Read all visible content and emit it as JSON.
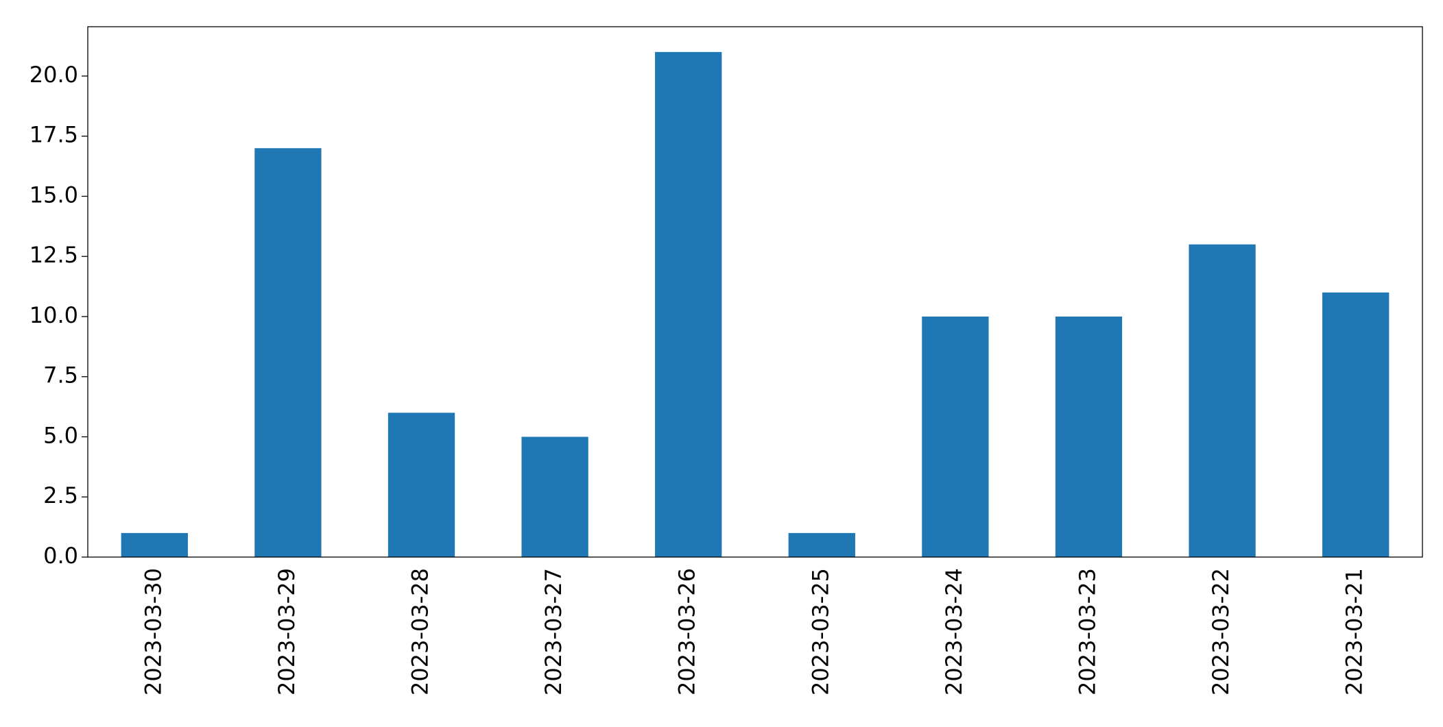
{
  "chart_data": {
    "type": "bar",
    "categories": [
      "2023-03-30",
      "2023-03-29",
      "2023-03-28",
      "2023-03-27",
      "2023-03-26",
      "2023-03-25",
      "2023-03-24",
      "2023-03-23",
      "2023-03-22",
      "2023-03-21"
    ],
    "values": [
      1,
      17,
      6,
      5,
      21,
      1,
      10,
      10,
      13,
      11
    ],
    "color": "#1f77b4",
    "ylim": [
      0,
      22.05
    ],
    "yticks": [
      {
        "value": 0,
        "label": "0.0"
      },
      {
        "value": 2.5,
        "label": "2.5"
      },
      {
        "value": 5,
        "label": "5.0"
      },
      {
        "value": 7.5,
        "label": "7.5"
      },
      {
        "value": 10,
        "label": "10.0"
      },
      {
        "value": 12.5,
        "label": "12.5"
      },
      {
        "value": 15,
        "label": "15.0"
      },
      {
        "value": 17.5,
        "label": "17.5"
      },
      {
        "value": 20,
        "label": "20.0"
      }
    ],
    "grid": false
  }
}
